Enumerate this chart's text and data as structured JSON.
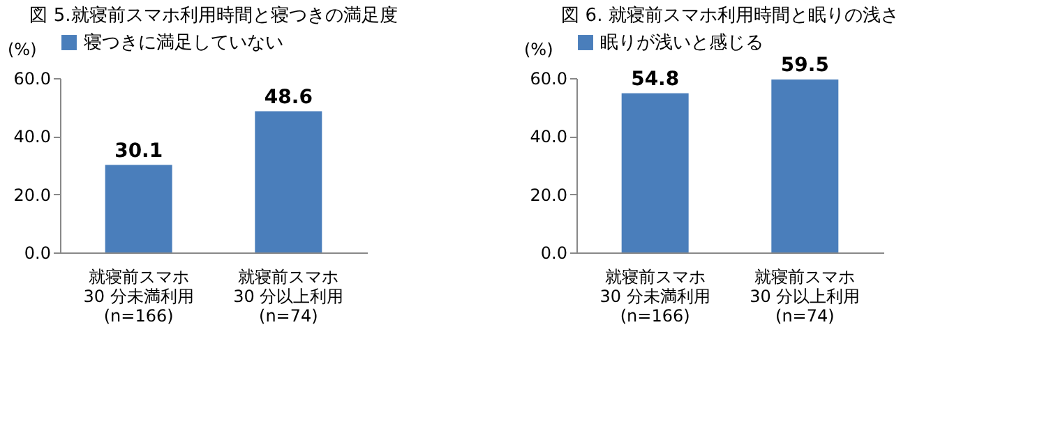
{
  "chart_data": [
    {
      "type": "bar",
      "title": "図 5.就寝前スマホ利用時間と寝つきの満足度",
      "ylabel": "(%)",
      "categories": [
        "就寝前スマホ\n30 分未満利用\n(n=166)",
        "就寝前スマホ\n30 分以上利用\n(n=74)"
      ],
      "series": [
        {
          "name": "寝つきに満足していない",
          "color": "#4a7ebb",
          "values": [
            30.1,
            48.6
          ]
        }
      ],
      "ylim": [
        0,
        60
      ],
      "yticks": [
        {
          "value": 0,
          "label": "0.0"
        },
        {
          "value": 20,
          "label": "20.0"
        },
        {
          "value": 40,
          "label": "40.0"
        },
        {
          "value": 60,
          "label": "60.0"
        }
      ],
      "data_labels": true,
      "legend": "top",
      "grid": false
    },
    {
      "type": "bar",
      "title": "図 6. 就寝前スマホ利用時間と眠りの浅さ",
      "ylabel": "(%)",
      "categories": [
        "就寝前スマホ\n30 分未満利用\n(n=166)",
        "就寝前スマホ\n30 分以上利用\n(n=74)"
      ],
      "series": [
        {
          "name": "眠りが浅いと感じる",
          "color": "#4a7ebb",
          "values": [
            54.8,
            59.5
          ]
        }
      ],
      "ylim": [
        0,
        60
      ],
      "yticks": [
        {
          "value": 0,
          "label": "0.0"
        },
        {
          "value": 20,
          "label": "20.0"
        },
        {
          "value": 40,
          "label": "40.0"
        },
        {
          "value": 60,
          "label": "60.0"
        }
      ],
      "data_labels": true,
      "legend": "top",
      "grid": false
    }
  ]
}
